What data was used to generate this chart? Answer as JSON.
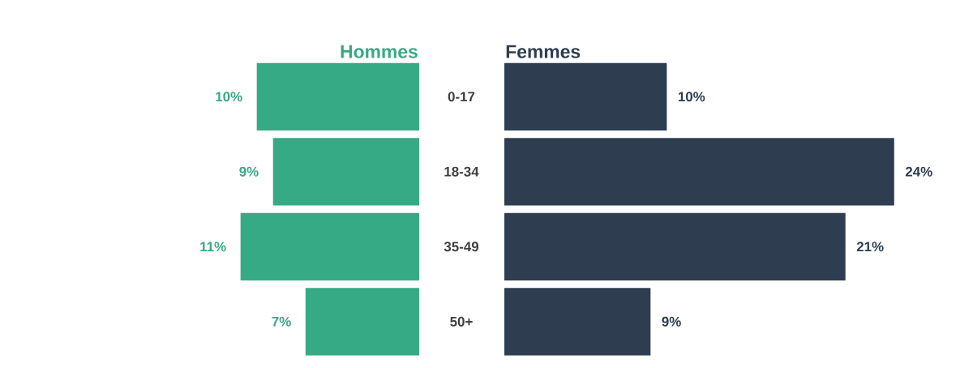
{
  "chart_data": [
    {
      "type": "bar",
      "orientation": "horizontal",
      "title": "Hommes",
      "categories": [
        "0-17",
        "18-34",
        "35-49",
        "50+"
      ],
      "series": [
        {
          "color": "#36aa84",
          "values": [
            10,
            9,
            11,
            7
          ],
          "value_labels": [
            "10%",
            "9%",
            "11%",
            "7%"
          ]
        }
      ]
    },
    {
      "type": "bar",
      "orientation": "horizontal",
      "title": "Femmes",
      "categories": [
        null,
        null,
        null,
        null
      ],
      "series": [
        {
          "color": "#2e3e50",
          "values": [
            10,
            24,
            21,
            9
          ],
          "value_labels": [
            "10%",
            "24%",
            "21%",
            "9%"
          ]
        }
      ]
    }
  ]
}
